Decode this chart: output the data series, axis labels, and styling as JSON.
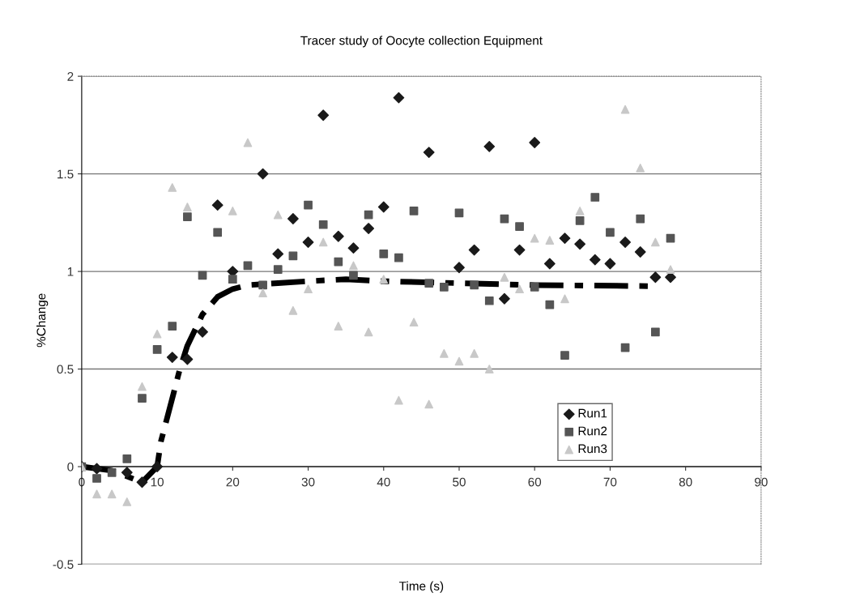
{
  "chart_data": {
    "type": "scatter",
    "title": "Tracer study of Oocyte collection Equipment",
    "xlabel": "Time (s)",
    "ylabel": "%Change",
    "x": [
      0,
      2,
      4,
      6,
      8,
      10,
      12,
      14,
      16,
      18,
      20,
      22,
      24,
      26,
      28,
      30,
      32,
      34,
      36,
      38,
      40,
      42,
      44,
      46,
      48,
      50,
      52,
      54,
      56,
      58,
      60,
      62,
      64,
      66,
      68,
      70,
      72,
      74,
      76,
      78
    ],
    "series": [
      {
        "name": "Run1",
        "color": "#1a1a1a",
        "marker": "diamond",
        "values": [
          0,
          -0.01,
          null,
          -0.03,
          -0.08,
          0.0,
          0.56,
          0.55,
          0.69,
          1.34,
          1.0,
          null,
          1.5,
          1.09,
          1.27,
          1.15,
          1.8,
          1.18,
          1.12,
          1.22,
          1.33,
          1.89,
          null,
          1.61,
          null,
          1.02,
          1.11,
          1.64,
          0.86,
          1.11,
          1.66,
          1.04,
          1.17,
          1.14,
          1.06,
          1.04,
          1.15,
          1.1,
          0.97,
          0.97
        ]
      },
      {
        "name": "Run2",
        "color": "#555555",
        "marker": "square",
        "values": [
          0,
          -0.06,
          -0.03,
          0.04,
          0.35,
          0.6,
          0.72,
          1.28,
          0.98,
          1.2,
          0.96,
          1.03,
          0.93,
          1.01,
          1.08,
          1.34,
          1.24,
          1.05,
          0.98,
          1.29,
          1.09,
          1.07,
          1.31,
          0.94,
          0.92,
          1.3,
          0.93,
          0.85,
          1.27,
          1.23,
          0.92,
          0.83,
          0.57,
          1.26,
          1.38,
          1.2,
          0.61,
          1.27,
          0.69,
          1.17
        ]
      },
      {
        "name": "Run3",
        "color": "#c8c8c8",
        "marker": "triangle",
        "values": [
          0,
          -0.14,
          -0.14,
          -0.18,
          0.41,
          0.68,
          1.43,
          1.33,
          null,
          null,
          1.31,
          1.66,
          0.89,
          1.29,
          0.8,
          0.91,
          1.15,
          0.72,
          1.03,
          0.69,
          0.96,
          0.34,
          0.74,
          0.32,
          0.58,
          0.54,
          0.58,
          0.5,
          0.97,
          0.91,
          1.17,
          1.16,
          0.86,
          1.31,
          null,
          null,
          1.83,
          1.53,
          1.15,
          1.01
        ]
      },
      {
        "type": "line",
        "color": "#000000",
        "line_style": "dashed",
        "x": [
          0,
          4,
          8,
          10,
          10.5,
          12,
          13,
          14,
          16,
          18,
          20,
          22,
          26,
          30,
          35,
          40,
          50,
          60,
          75
        ],
        "values": [
          0,
          -0.02,
          -0.08,
          0.0,
          0.13,
          0.35,
          0.5,
          0.62,
          0.78,
          0.87,
          0.91,
          0.93,
          0.94,
          0.95,
          0.96,
          0.95,
          0.94,
          0.93,
          0.925
        ]
      }
    ],
    "xlim": [
      0,
      90
    ],
    "xticks": [
      0,
      10,
      20,
      30,
      40,
      50,
      60,
      70,
      80,
      90
    ],
    "ylim": [
      -0.5,
      2
    ],
    "yticks": [
      -0.5,
      0,
      0.5,
      1,
      1.5,
      2
    ],
    "grid": "y",
    "legend": "bottom right"
  }
}
